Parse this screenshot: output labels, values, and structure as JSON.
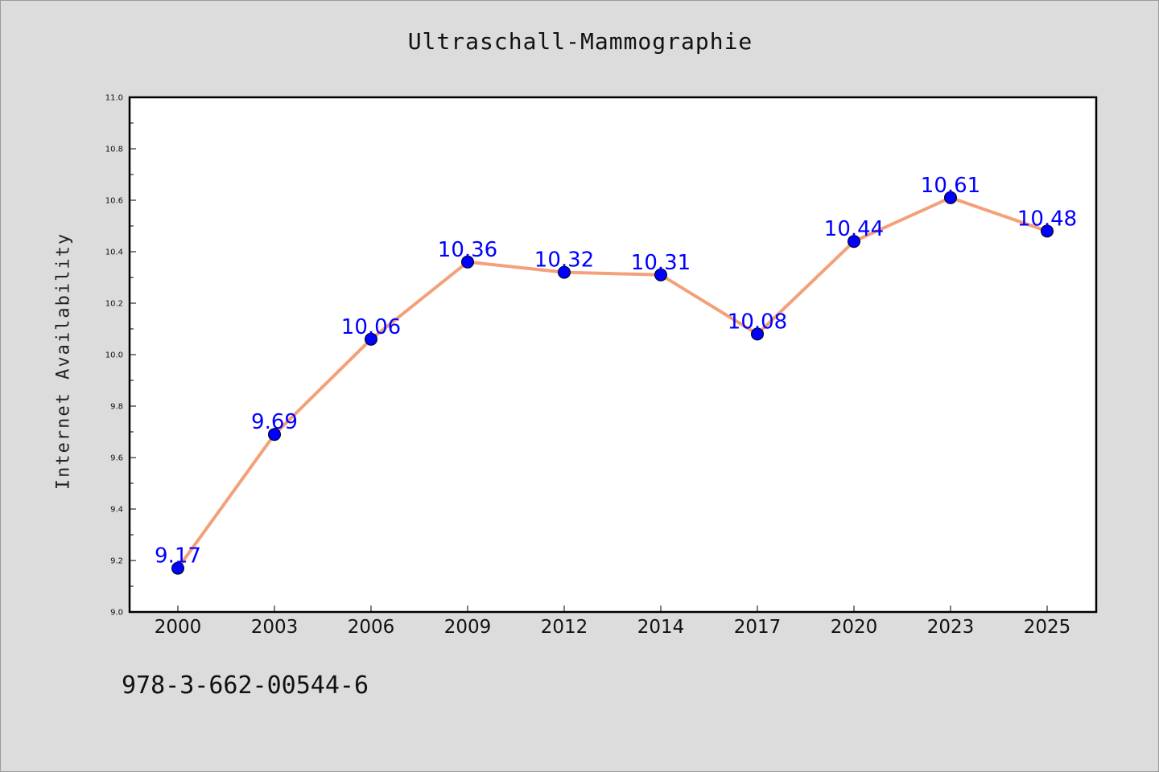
{
  "chart_data": {
    "type": "line",
    "title": "Ultraschall-Mammographie",
    "xlabel": "",
    "ylabel": "Internet Availability",
    "categories": [
      "2000",
      "2003",
      "2006",
      "2009",
      "2012",
      "2014",
      "2017",
      "2020",
      "2023",
      "2025"
    ],
    "series": [
      {
        "values": [
          9.17,
          9.69,
          10.06,
          10.36,
          10.32,
          10.31,
          10.08,
          10.44,
          10.61,
          10.48
        ],
        "labels": [
          "9.17",
          "9.69",
          "10.06",
          "10.36",
          "10.32",
          "10.31",
          "10.08",
          "10.44",
          "10.61",
          "10.48"
        ],
        "line_color": "#f4a07a",
        "marker_color": "#0000ff"
      }
    ],
    "ylim": [
      9.0,
      11.0
    ],
    "yticks": [
      "9.0",
      "9.2",
      "9.4",
      "9.6",
      "9.8",
      "10.0",
      "10.2",
      "10.4",
      "10.6",
      "10.8",
      "11.0"
    ],
    "grid": false,
    "legend": "none"
  },
  "footnote": "978-3-662-00544-6",
  "colors": {
    "background": "#dcdcdc",
    "plot_background": "#ffffff",
    "line": "#f4a07a",
    "marker": "#0000ff",
    "data_label": "#0000ff"
  }
}
